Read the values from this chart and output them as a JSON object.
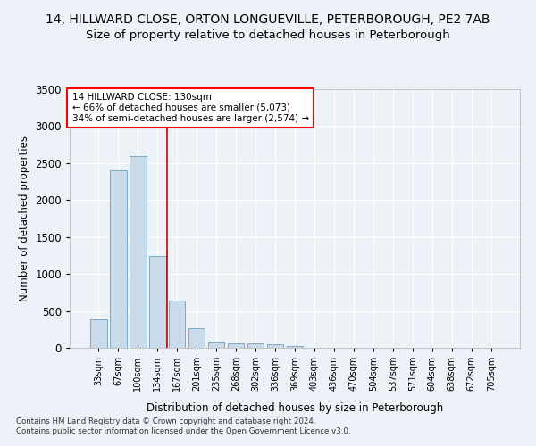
{
  "title1": "14, HILLWARD CLOSE, ORTON LONGUEVILLE, PETERBOROUGH, PE2 7AB",
  "title2": "Size of property relative to detached houses in Peterborough",
  "xlabel": "Distribution of detached houses by size in Peterborough",
  "ylabel": "Number of detached properties",
  "footer1": "Contains HM Land Registry data © Crown copyright and database right 2024.",
  "footer2": "Contains public sector information licensed under the Open Government Licence v3.0.",
  "annotation_line1": "14 HILLWARD CLOSE: 130sqm",
  "annotation_line2": "← 66% of detached houses are smaller (5,073)",
  "annotation_line3": "34% of semi-detached houses are larger (2,574) →",
  "bar_color": "#c9daea",
  "bar_edge_color": "#7aaac8",
  "vline_color": "#cc0000",
  "vline_x_idx": 3,
  "categories": [
    "33sqm",
    "67sqm",
    "100sqm",
    "134sqm",
    "167sqm",
    "201sqm",
    "235sqm",
    "268sqm",
    "302sqm",
    "336sqm",
    "369sqm",
    "403sqm",
    "436sqm",
    "470sqm",
    "504sqm",
    "537sqm",
    "571sqm",
    "604sqm",
    "638sqm",
    "672sqm",
    "705sqm"
  ],
  "values": [
    390,
    2400,
    2600,
    1240,
    640,
    260,
    90,
    60,
    55,
    45,
    30,
    0,
    0,
    0,
    0,
    0,
    0,
    0,
    0,
    0,
    0
  ],
  "ylim": [
    0,
    3500
  ],
  "yticks": [
    0,
    500,
    1000,
    1500,
    2000,
    2500,
    3000,
    3500
  ],
  "background_color": "#edf2f9",
  "grid_color": "#ffffff",
  "title1_fontsize": 10,
  "title2_fontsize": 9.5
}
